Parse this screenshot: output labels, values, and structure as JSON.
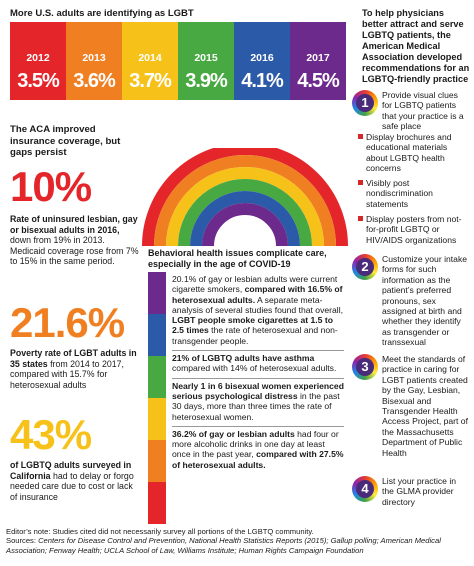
{
  "top_title": "More U.S. adults are identifying as LGBT",
  "bars": [
    {
      "year": "2012",
      "value": "3.5%",
      "color": "#e4262b"
    },
    {
      "year": "2013",
      "value": "3.6%",
      "color": "#f07f22"
    },
    {
      "year": "2014",
      "value": "3.7%",
      "color": "#f6c21a"
    },
    {
      "year": "2015",
      "value": "3.9%",
      "color": "#48a942"
    },
    {
      "year": "2016",
      "value": "4.1%",
      "color": "#2b5aa8"
    },
    {
      "year": "2017",
      "value": "4.5%",
      "color": "#6c2a8c"
    }
  ],
  "chart_data": {
    "type": "bar",
    "categories": [
      "2012",
      "2013",
      "2014",
      "2015",
      "2016",
      "2017"
    ],
    "values": [
      3.5,
      3.6,
      3.7,
      3.9,
      4.1,
      4.5
    ],
    "title": "More U.S. adults are identifying as LGBT"
  },
  "aca_heading": "The ACA improved insurance coverage, but gaps persist",
  "stats": [
    {
      "big": "10%",
      "bold": "Rate of uninsured lesbian, gay or bisexual adults in 2016,",
      "rest": " down from 19% in 2013. Medicaid coverage rose from 7% to 15% in the same period."
    },
    {
      "big": "21.6%",
      "bold": "Poverty rate of LGBT adults in 35 states",
      "rest": " from 2014 to 2017, compared with 15.7% for heterosexual adults"
    },
    {
      "big": "43%",
      "bold": "of LGBTQ adults surveyed in California",
      "rest": " had to delay or forgo needed care due to cost or lack of insurance"
    }
  ],
  "right_heading": "To help physicians better attract and serve LGBTQ patients, the American Medical Association developed recommendations for an LGBTQ-friendly practice",
  "recommendations": [
    {
      "num": "1",
      "text": "Provide visual clues for LGBTQ patients that your practice is a safe place"
    },
    {
      "num": "2",
      "text": "Customize your intake forms for such information as the patient’s preferred pronouns, sex assigned at birth and whether they identify as transgender or transsexual"
    },
    {
      "num": "3",
      "text": "Meet the standards of practice in caring for LGBT patients created by the Gay, Lesbian, Bisexual and Transgender Health Access Project, part of the Massachusetts Department of Public Health"
    },
    {
      "num": "4",
      "text": "List your practice in the GLMA provider directory"
    }
  ],
  "bullets": [
    "Display brochures and educational materials about LGBTQ health concerns",
    "Visibly post nondiscrimination statements",
    "Display posters from not-for-profit LGBTQ or HIV/AIDS organizations"
  ],
  "behavioral": {
    "heading": "Behavioral health issues complicate care, especially in the age of COVID-19",
    "items": [
      {
        "a": "20.1% of gay or lesbian adults were current cigarette smokers, ",
        "b": "compared with 16.5% of heterosexual adults.",
        "c": " A separate meta-analysis of several studies found that overall, ",
        "d": "LGBT people smoke cigarettes at 1.5 to 2.5 times",
        "e": " the rate of heterosexual and non-transgender people."
      },
      {
        "a": "",
        "b": "21% of LGBTQ adults have asthma",
        "c": " compared with 14% of heterosexual adults.",
        "d": "",
        "e": ""
      },
      {
        "a": "",
        "b": "Nearly 1 in 6 bisexual women experienced serious psychological distress",
        "c": " in the past 30 days, more than three times the rate of heterosexual women.",
        "d": "",
        "e": ""
      },
      {
        "a": "",
        "b": "36.2% of gay or lesbian adults",
        "c": " had four or more alcoholic drinks in one day at least once in the past year, ",
        "d": "compared with 27.5% of heterosexual adults.",
        "e": ""
      }
    ],
    "strip_colors": [
      "#6c2a8c",
      "#2b5aa8",
      "#48a942",
      "#f6c21a",
      "#f07f22",
      "#e4262b"
    ]
  },
  "footnote": {
    "line1": "Editor’s note: Studies cited did not necessarily survey all portions of the LGBTQ community.",
    "sources_label": "Sources: ",
    "sources": "Centers for Disease Control and Prevention, National Health Statistics Reports (2015); Gallup polling; American Medical Association; Fenway Health; UCLA School of Law, Williams Institute; Human Rights Campaign Foundation"
  }
}
